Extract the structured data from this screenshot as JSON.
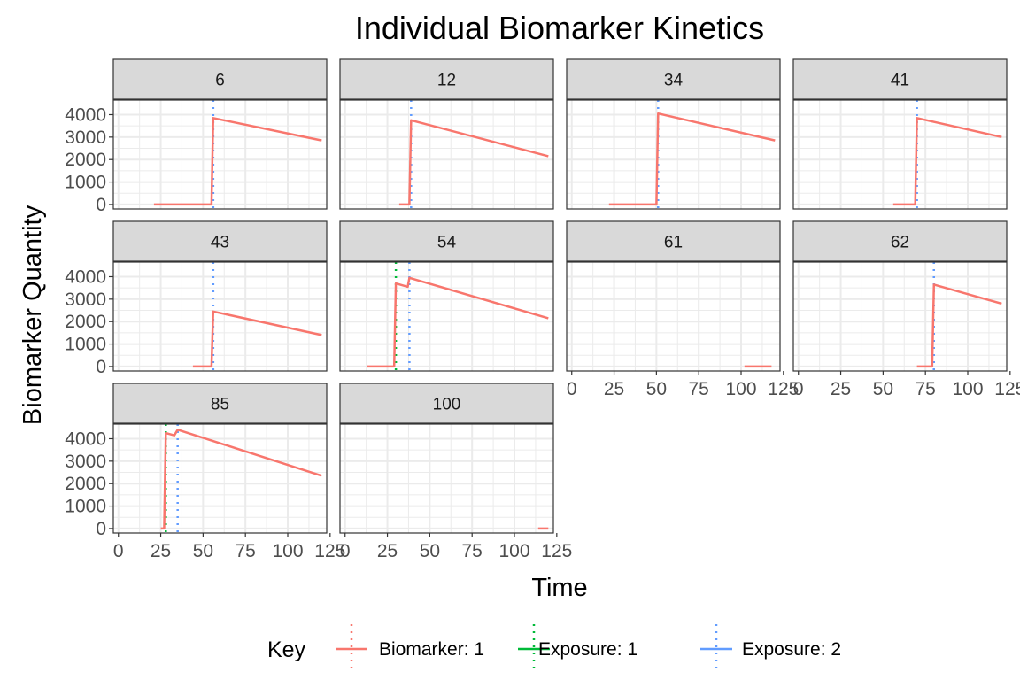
{
  "chart_data": {
    "type": "line",
    "title": "Individual Biomarker Kinetics",
    "xlabel": "Time",
    "ylabel": "Biomarker Quantity",
    "xlim": [
      -3,
      123
    ],
    "ylim": [
      -200,
      4650
    ],
    "x_ticks": [
      0,
      25,
      50,
      75,
      100,
      125
    ],
    "x_tick_labels": [
      "0",
      "25",
      "50",
      "75",
      "100",
      "125"
    ],
    "y_ticks": [
      0,
      1000,
      2000,
      3000,
      4000
    ],
    "y_tick_labels": [
      "0",
      "1000",
      "2000",
      "3000",
      "4000"
    ],
    "grid": true,
    "legend": {
      "position": "bottom",
      "title": "Key",
      "entries": [
        "Biomarker: 1",
        "Exposure: 1",
        "Exposure: 2"
      ]
    },
    "colors": {
      "biomarker": "#F8766D",
      "exposure1": "#00BA38",
      "exposure2": "#619CFF",
      "strip_bg": "#D9D9D9",
      "grid": "#EBEBEB",
      "border": "#333333"
    },
    "panels": [
      {
        "label": "6",
        "biomarker": [
          [
            21,
            0
          ],
          [
            55,
            0
          ],
          [
            56,
            3850
          ],
          [
            120,
            2850
          ]
        ],
        "exposure1": [],
        "exposure2": [
          56
        ]
      },
      {
        "label": "12",
        "biomarker": [
          [
            32,
            0
          ],
          [
            38,
            0
          ],
          [
            39,
            3750
          ],
          [
            120,
            2150
          ]
        ],
        "exposure1": [],
        "exposure2": [
          39
        ]
      },
      {
        "label": "34",
        "biomarker": [
          [
            22,
            0
          ],
          [
            50,
            0
          ],
          [
            51,
            4050
          ],
          [
            120,
            2850
          ]
        ],
        "exposure1": [],
        "exposure2": [
          51
        ]
      },
      {
        "label": "41",
        "biomarker": [
          [
            56,
            0
          ],
          [
            69,
            0
          ],
          [
            70,
            3850
          ],
          [
            120,
            3000
          ]
        ],
        "exposure1": [],
        "exposure2": [
          70
        ]
      },
      {
        "label": "43",
        "biomarker": [
          [
            44,
            0
          ],
          [
            55,
            0
          ],
          [
            56,
            2450
          ],
          [
            120,
            1400
          ]
        ],
        "exposure1": [],
        "exposure2": [
          56
        ]
      },
      {
        "label": "54",
        "biomarker": [
          [
            13,
            0
          ],
          [
            29,
            0
          ],
          [
            30,
            3700
          ],
          [
            37,
            3550
          ],
          [
            38,
            3950
          ],
          [
            120,
            2150
          ]
        ],
        "exposure1": [
          30
        ],
        "exposure2": [
          38
        ]
      },
      {
        "label": "61",
        "biomarker": [
          [
            102,
            0
          ],
          [
            118,
            0
          ]
        ],
        "exposure1": [],
        "exposure2": []
      },
      {
        "label": "62",
        "biomarker": [
          [
            70,
            0
          ],
          [
            79,
            0
          ],
          [
            80,
            3650
          ],
          [
            120,
            2800
          ]
        ],
        "exposure1": [],
        "exposure2": [
          80
        ]
      },
      {
        "label": "85",
        "biomarker": [
          [
            25,
            0
          ],
          [
            27,
            0
          ],
          [
            28,
            4250
          ],
          [
            33,
            4150
          ],
          [
            35,
            4400
          ],
          [
            120,
            2350
          ]
        ],
        "exposure1": [
          28
        ],
        "exposure2": [
          35
        ]
      },
      {
        "label": "100",
        "biomarker": [
          [
            114,
            0
          ],
          [
            120,
            0
          ]
        ],
        "exposure1": [],
        "exposure2": []
      }
    ]
  }
}
